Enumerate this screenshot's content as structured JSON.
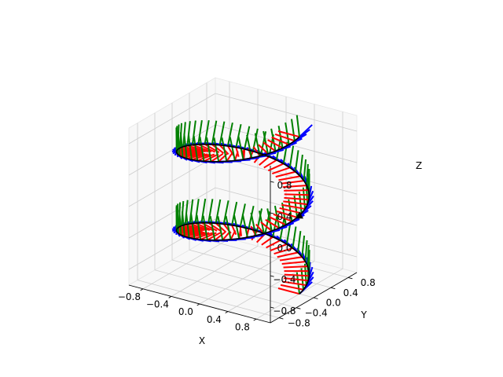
{
  "chart_data": {
    "type": "3d-line-with-frame-vectors",
    "title": "",
    "xlabel": "X",
    "ylabel": "Y",
    "zlabel": "Z",
    "xlim": [
      -1,
      1
    ],
    "ylim": [
      -1,
      1
    ],
    "zlim": [
      -1,
      1
    ],
    "xticks": [
      -0.8,
      -0.4,
      0.0,
      0.4,
      0.8
    ],
    "yticks": [
      -0.8,
      -0.4,
      0.0,
      0.4,
      0.8
    ],
    "zticks": [
      -0.8,
      -0.4,
      0.0,
      0.4,
      0.8
    ],
    "xtick_labels": [
      "−0.8",
      "−0.4",
      "0.0",
      "0.4",
      "0.8"
    ],
    "ytick_labels": [
      "−0.8",
      "−0.4",
      "0.0",
      "0.4",
      "0.8"
    ],
    "ztick_labels": [
      "−0.8",
      "−0.4",
      "0.0",
      "0.4",
      "0.8"
    ],
    "grid": true,
    "curve": {
      "name": "helix",
      "radius": 0.8,
      "z_range": [
        -1,
        1
      ],
      "turns": 2,
      "color": "#000000"
    },
    "frame_vectors": {
      "count": 100,
      "length": 0.3,
      "series": [
        {
          "key": "tangent",
          "color": "#0000ff"
        },
        {
          "key": "normal",
          "color": "#ff0000"
        },
        {
          "key": "binormal",
          "color": "#008000"
        }
      ]
    },
    "marker": {
      "x": 0.8,
      "y": 0.0,
      "z": 0.0,
      "shape": "triangle",
      "color": "#000000"
    }
  }
}
